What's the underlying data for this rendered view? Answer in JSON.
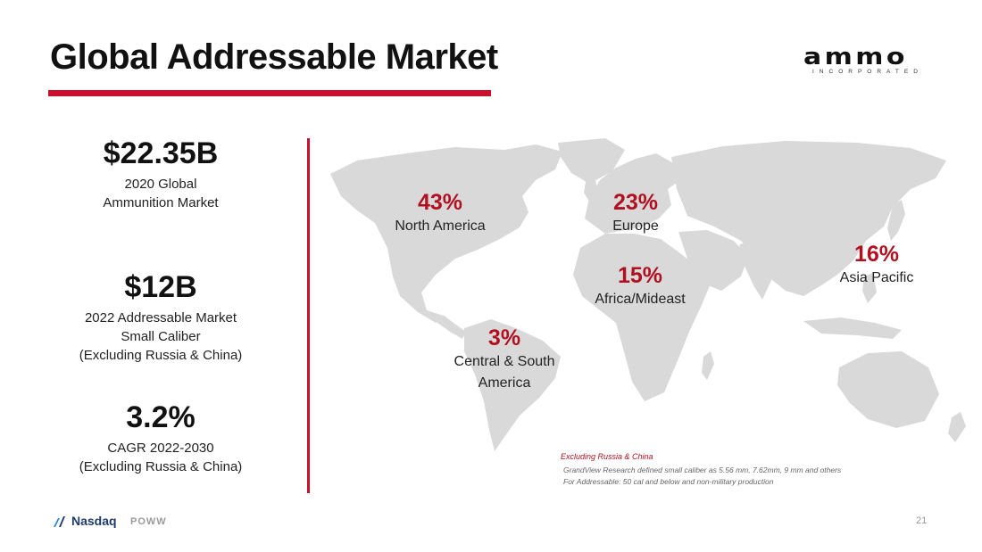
{
  "slide": {
    "title": "Global Addressable Market",
    "page_number": "21",
    "accent_color": "#c8102e"
  },
  "logo": {
    "wordmark": "ammo",
    "subtitle": "INCORPORATED"
  },
  "stats": [
    {
      "value": "$22.35B",
      "lines": [
        "2020 Global",
        "Ammunition Market"
      ]
    },
    {
      "value": "$12B",
      "lines": [
        "2022 Addressable Market",
        "Small Caliber",
        "(Excluding Russia & China)"
      ]
    },
    {
      "value": "3.2%",
      "lines": [
        "CAGR 2022-2030",
        "(Excluding Russia & China)"
      ]
    }
  ],
  "regions": [
    {
      "percent": "43%",
      "name": "North America"
    },
    {
      "percent": "23%",
      "name": "Europe"
    },
    {
      "percent": "15%",
      "name": "Africa/Mideast"
    },
    {
      "percent": "16%",
      "name": "Asia Pacific"
    },
    {
      "percent": "3%",
      "name_lines": [
        "Central & South",
        "America"
      ]
    }
  ],
  "notes": {
    "title": "Excluding Russia & China",
    "lines": [
      "GrandView Research defined small caliber as 5.56 mm, 7.62mm, 9 mm and others",
      "For Addressable: 50 cal and below and non-military production"
    ]
  },
  "footer": {
    "exchange": "Nasdaq",
    "ticker": "POWW"
  },
  "map": {
    "land_color": "#d9d9d9",
    "value_color": "#b01020"
  }
}
